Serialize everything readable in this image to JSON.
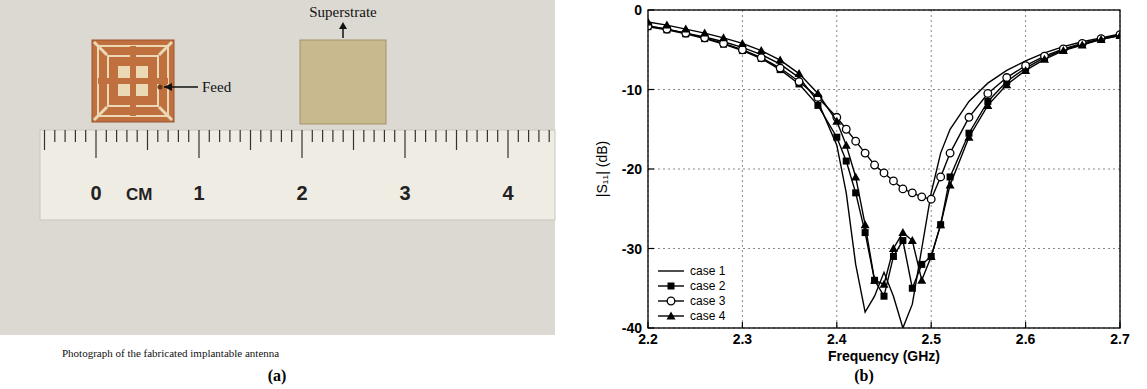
{
  "chart_data": {
    "type": "line",
    "panel_label": "(b)",
    "x_label": "Frequency (GHz)",
    "y_label": "|S₁₁| (dB)",
    "x": [
      2.2,
      2.22,
      2.24,
      2.26,
      2.28,
      2.3,
      2.32,
      2.34,
      2.36,
      2.38,
      2.4,
      2.41,
      2.42,
      2.43,
      2.44,
      2.45,
      2.46,
      2.47,
      2.48,
      2.49,
      2.5,
      2.51,
      2.52,
      2.54,
      2.56,
      2.58,
      2.6,
      2.62,
      2.64,
      2.66,
      2.68,
      2.7
    ],
    "series": [
      {
        "name": "case 1",
        "color": "#000000",
        "marker": "none",
        "line_style": "solid",
        "values": [
          -2,
          -2.4,
          -2.9,
          -3.4,
          -4.0,
          -4.7,
          -5.6,
          -6.8,
          -8.5,
          -11.5,
          -17,
          -23,
          -32,
          -38,
          -36,
          -33,
          -36,
          -40,
          -37,
          -30,
          -23,
          -18,
          -15,
          -11.5,
          -9.2,
          -7.6,
          -6.4,
          -5.4,
          -4.6,
          -4.0,
          -3.5,
          -3.0
        ]
      },
      {
        "name": "case 2",
        "color": "#000000",
        "marker": "square",
        "line_style": "solid",
        "values": [
          -2.1,
          -2.5,
          -3.0,
          -3.6,
          -4.3,
          -5.1,
          -6.1,
          -7.5,
          -9.3,
          -12,
          -16,
          -19,
          -23,
          -28,
          -34,
          -36,
          -31,
          -29,
          -35,
          -32,
          -31,
          -27,
          -21,
          -15.5,
          -11.5,
          -9,
          -7.3,
          -6,
          -5,
          -4.3,
          -3.7,
          -3.2
        ]
      },
      {
        "name": "case 3",
        "color": "#000000",
        "marker": "circle",
        "line_style": "solid",
        "values": [
          -2,
          -2.4,
          -2.9,
          -3.5,
          -4.2,
          -5,
          -6,
          -7.3,
          -9,
          -11,
          -13.5,
          -15,
          -16.5,
          -18,
          -19.5,
          -20.5,
          -21.5,
          -22.5,
          -23,
          -23.5,
          -23.8,
          -21,
          -18,
          -13.5,
          -10.5,
          -8.5,
          -7,
          -5.8,
          -4.9,
          -4.2,
          -3.6,
          -3.1
        ]
      },
      {
        "name": "case 4",
        "color": "#000000",
        "marker": "triangle",
        "line_style": "solid",
        "values": [
          -1.5,
          -1.9,
          -2.4,
          -2.9,
          -3.5,
          -4.2,
          -5.1,
          -6.3,
          -8,
          -10.5,
          -14,
          -17,
          -21,
          -27,
          -34,
          -34.5,
          -30,
          -28,
          -29,
          -34,
          -31,
          -27,
          -22,
          -16,
          -12,
          -9.4,
          -7.6,
          -6.2,
          -5.1,
          -4.4,
          -3.7,
          -3.2
        ]
      }
    ],
    "xlim": [
      2.2,
      2.7
    ],
    "xticks": [
      2.2,
      2.3,
      2.4,
      2.5,
      2.6,
      2.7
    ],
    "ylim": [
      -40,
      0
    ],
    "yticks": [
      -40,
      -30,
      -20,
      -10,
      0
    ],
    "grid": true,
    "legend": "lower left"
  },
  "photo": {
    "panel_label": "(a)",
    "caption": "Photograph of the fabricated implantable antenna",
    "feed_label": "Feed",
    "superstrate_label": "Superstrate",
    "ruler_labels": [
      "0",
      "CM",
      "1",
      "2",
      "3",
      "4"
    ]
  }
}
